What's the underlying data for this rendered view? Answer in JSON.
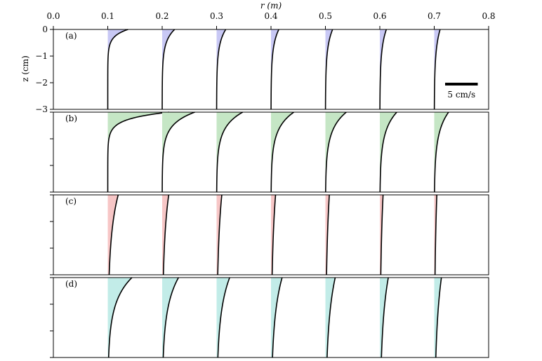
{
  "chart_data": {
    "type": "line",
    "title": "",
    "xlabel": "r (m)",
    "ylabel": "z (cm)",
    "xlim": [
      0.0,
      0.8
    ],
    "ylim": [
      -3,
      0
    ],
    "x_ticks": [
      "0.0",
      "0.1",
      "0.2",
      "0.3",
      "0.4",
      "0.5",
      "0.6",
      "0.7",
      "0.8"
    ],
    "y_ticks": [
      "0",
      "−1",
      "−2",
      "−3"
    ],
    "x_tick_values": [
      0.0,
      0.1,
      0.2,
      0.3,
      0.4,
      0.5,
      0.6,
      0.7,
      0.8
    ],
    "y_tick_values": [
      0,
      -1,
      -2,
      -3
    ],
    "x_axis_position": "top",
    "grid": false,
    "scale_bar": {
      "label": "5 cm/s",
      "value_cm_s": 5,
      "value_m": 0.06
    },
    "profile_stations_r": [
      0.1,
      0.2,
      0.3,
      0.4,
      0.5,
      0.6,
      0.7
    ],
    "panels": [
      {
        "label": "(a)",
        "fill_color": "#c8c8f5",
        "surface_velocity_cm_s": [
          3.1,
          1.9,
          1.4,
          1.2,
          1.1,
          1.0,
          0.9
        ],
        "decay_depth_cm": [
          0.25,
          0.45,
          0.55,
          0.6,
          0.65,
          0.7,
          0.75
        ]
      },
      {
        "label": "(b)",
        "fill_color": "#c5e6c5",
        "surface_velocity_cm_s": [
          9.4,
          5.0,
          4.0,
          3.5,
          3.2,
          2.6,
          2.2
        ],
        "decay_depth_cm": [
          0.25,
          0.45,
          0.55,
          0.6,
          0.65,
          0.7,
          0.75
        ]
      },
      {
        "label": "(c)",
        "fill_color": "#f7c6c6",
        "surface_velocity_cm_s": [
          1.6,
          1.0,
          0.8,
          0.7,
          0.6,
          0.5,
          0.4
        ],
        "decay_depth_cm": [
          1.5,
          1.8,
          2.0,
          2.2,
          2.4,
          2.5,
          2.6
        ]
      },
      {
        "label": "(d)",
        "fill_color": "#c2ece8",
        "surface_velocity_cm_s": [
          3.7,
          2.5,
          2.0,
          1.7,
          1.5,
          1.3,
          1.1
        ],
        "decay_depth_cm": [
          0.9,
          1.1,
          1.3,
          1.5,
          1.7,
          1.8,
          2.0
        ]
      }
    ]
  }
}
